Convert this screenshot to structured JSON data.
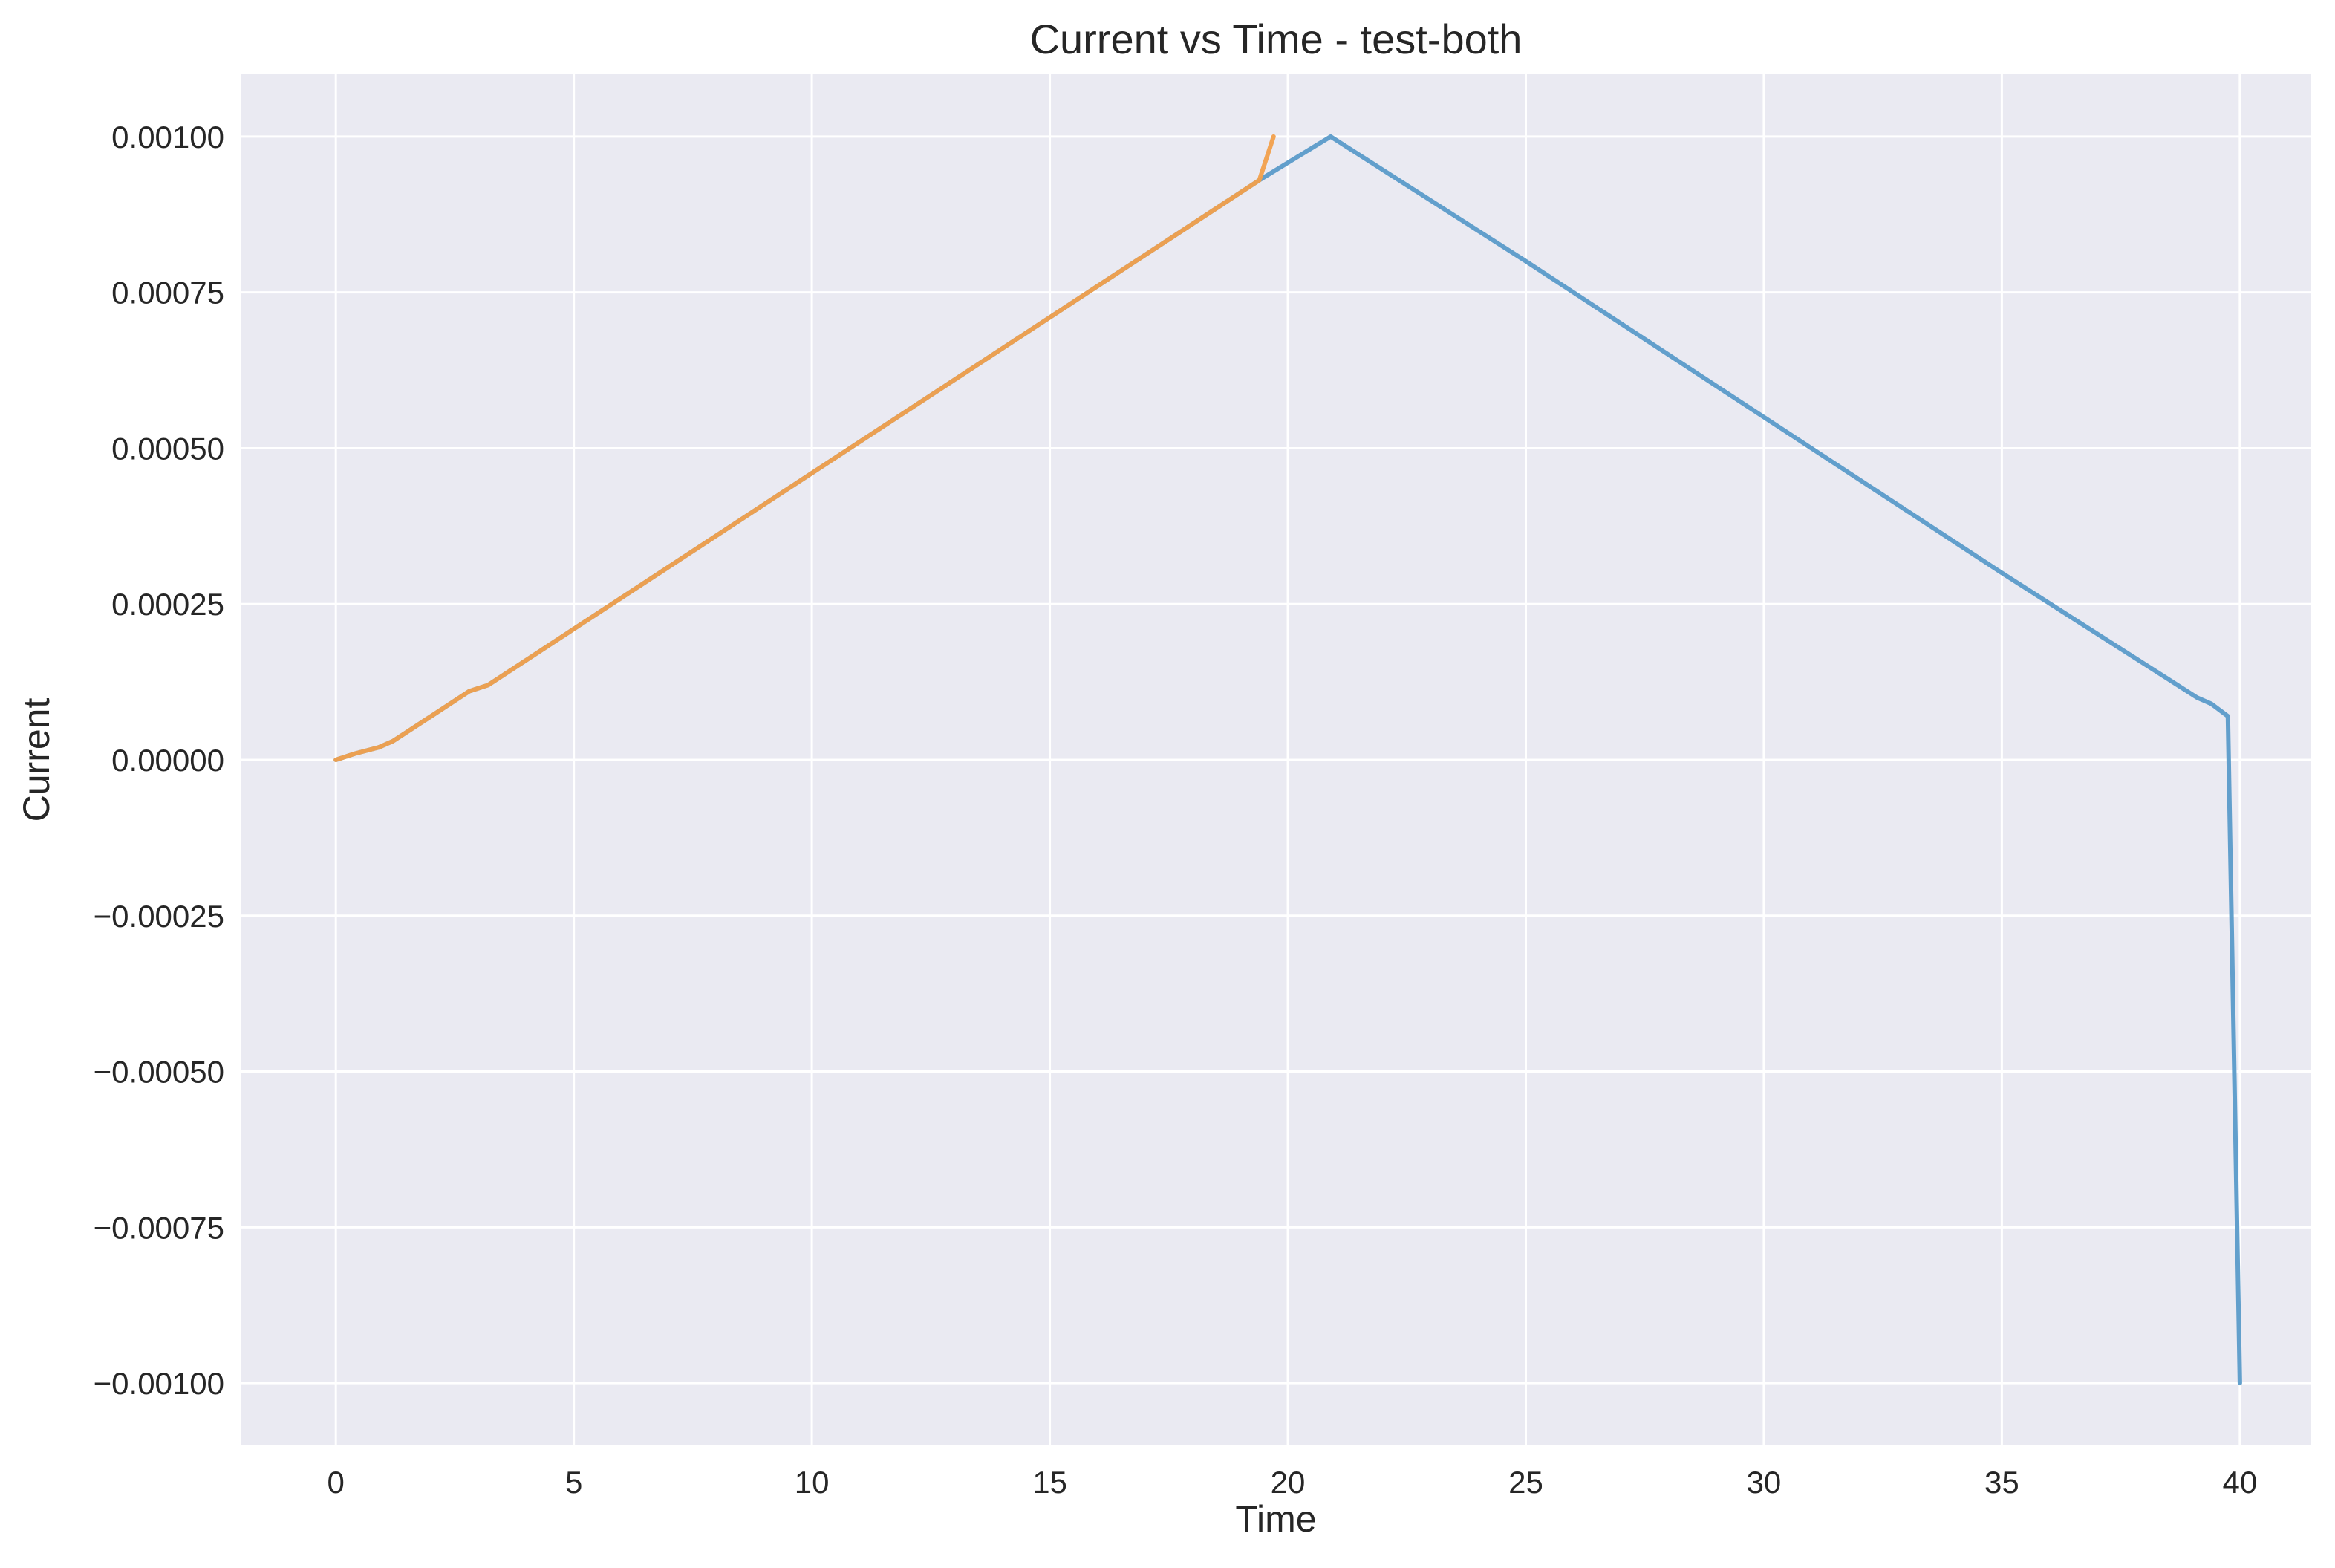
{
  "chart_data": {
    "type": "line",
    "title": "Current vs Time - test-both",
    "xlabel": "Time",
    "ylabel": "Current",
    "xlim": [
      -2,
      41.5
    ],
    "ylim": [
      -0.0011,
      0.0011
    ],
    "x_ticks": [
      0,
      5,
      10,
      15,
      20,
      25,
      30,
      35,
      40
    ],
    "x_tick_labels": [
      "0",
      "5",
      "10",
      "15",
      "20",
      "25",
      "30",
      "35",
      "40"
    ],
    "y_ticks": [
      0.001,
      0.00075,
      0.0005,
      0.00025,
      0,
      -0.00025,
      -0.0005,
      -0.00075,
      -0.001
    ],
    "y_tick_labels": [
      "0.00100",
      "0.00075",
      "0.00050",
      "0.00025",
      "0.00000",
      "−0.00025",
      "−0.00050",
      "−0.00075",
      "−0.00100"
    ],
    "grid": true,
    "legend": "none",
    "colors": {
      "plot_background": "#eaeaf2",
      "grid": "#ffffff"
    },
    "series": [
      {
        "color": "#5b9bc9",
        "x": [
          0,
          0.4,
          0.9,
          1.2,
          1.5,
          2.0,
          2.8,
          3.2,
          5,
          10,
          15,
          19.4,
          20.9,
          25,
          30,
          35,
          39.1,
          39.4,
          39.75,
          40
        ],
        "y": [
          0,
          1e-05,
          2e-05,
          3e-05,
          4.5e-05,
          7e-05,
          0.00011,
          0.00012,
          0.00021,
          0.00046,
          0.00071,
          0.00093,
          0.001,
          0.0008,
          0.00055,
          0.0003,
          0.0001,
          9e-05,
          7e-05,
          -0.001
        ]
      },
      {
        "color": "#f2a04b",
        "x": [
          0,
          0.4,
          0.9,
          1.2,
          1.5,
          2.0,
          2.8,
          3.2,
          5,
          10,
          15,
          19.4,
          19.7
        ],
        "y": [
          0,
          1e-05,
          2e-05,
          3e-05,
          4.5e-05,
          7e-05,
          0.00011,
          0.00012,
          0.00021,
          0.00046,
          0.00071,
          0.00093,
          0.001
        ]
      }
    ]
  }
}
